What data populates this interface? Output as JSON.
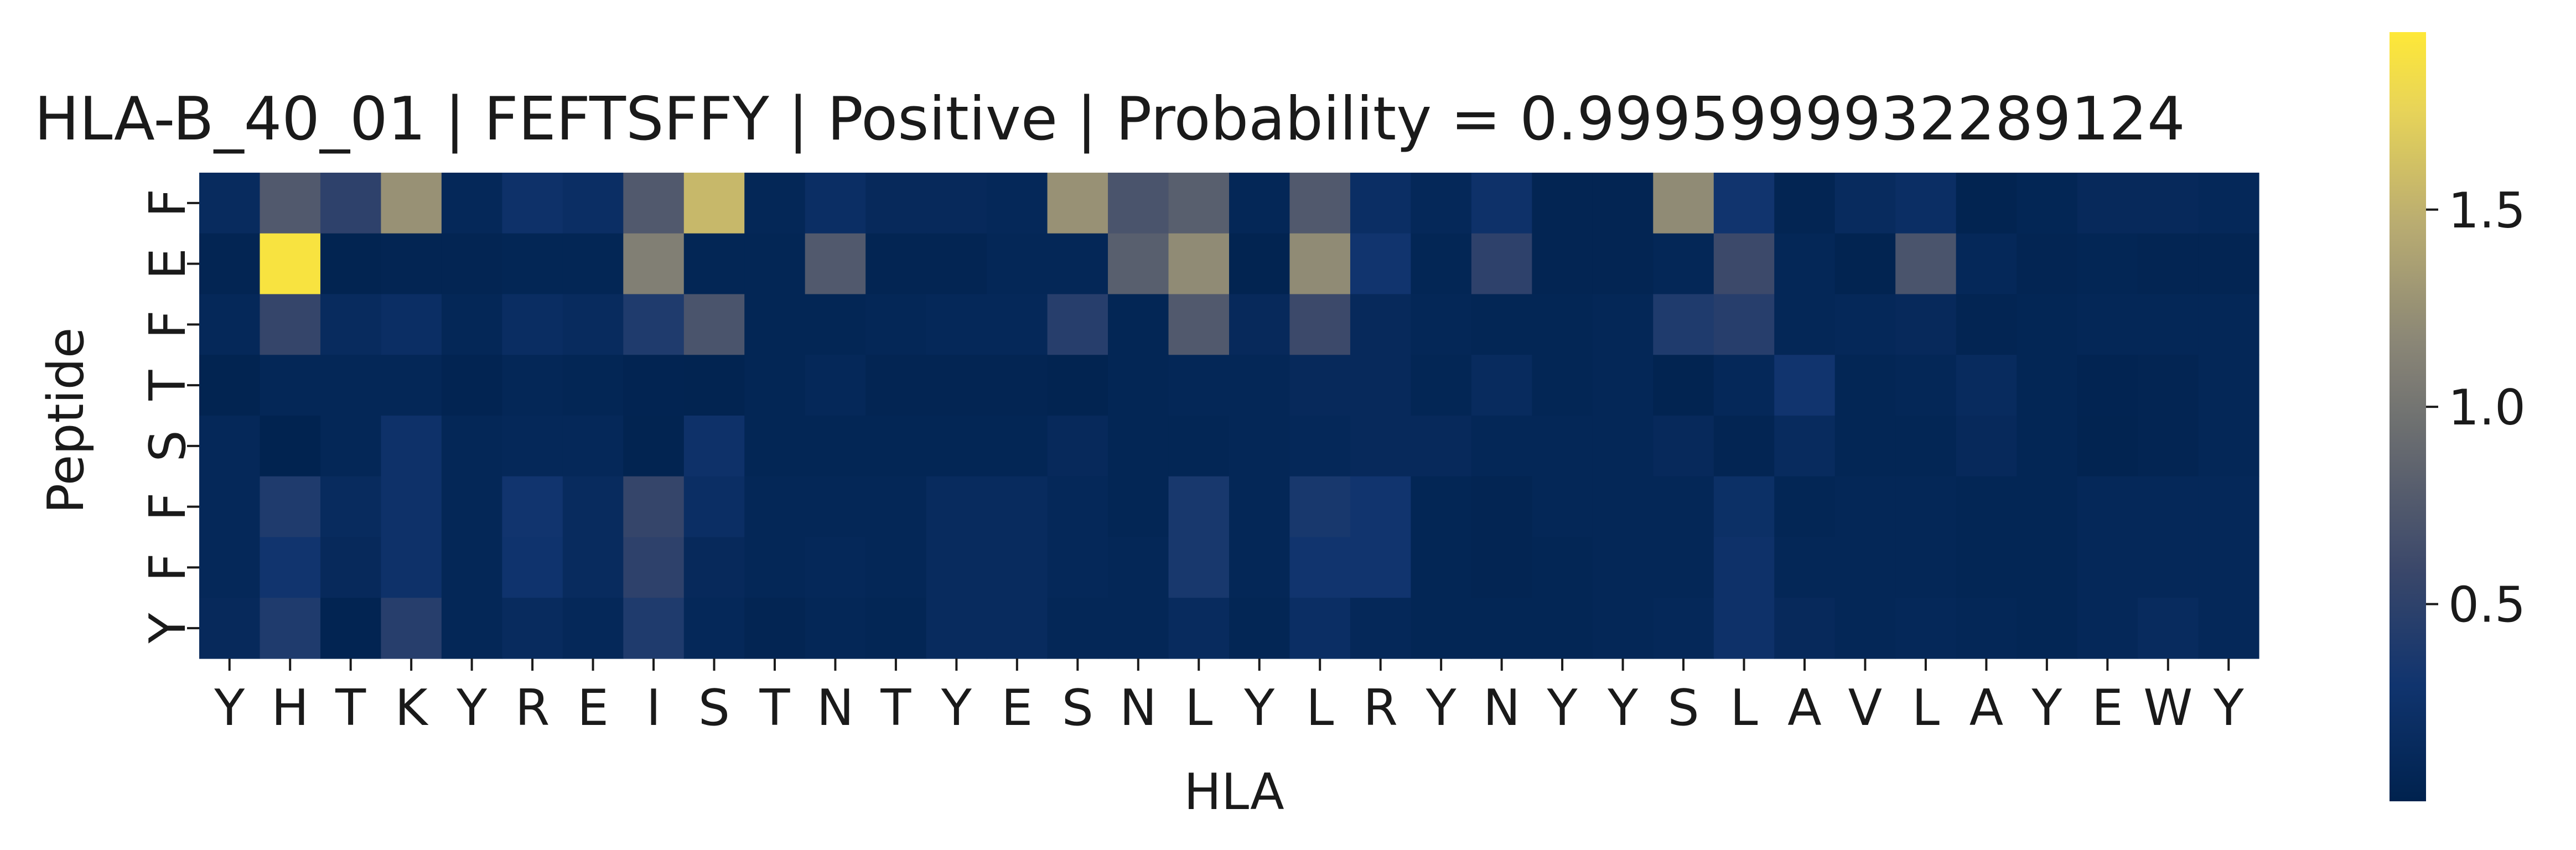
{
  "chart_data": {
    "type": "heatmap",
    "title": "HLA-B_40_01 | FEFTSFFY | Positive | Probability = 0.9995999932289124",
    "xlabel": "HLA",
    "ylabel": "Peptide",
    "x_categories": [
      "Y",
      "H",
      "T",
      "K",
      "Y",
      "R",
      "E",
      "I",
      "S",
      "T",
      "N",
      "T",
      "Y",
      "E",
      "S",
      "N",
      "L",
      "Y",
      "L",
      "R",
      "Y",
      "N",
      "Y",
      "Y",
      "S",
      "L",
      "A",
      "V",
      "L",
      "A",
      "Y",
      "E",
      "W",
      "Y"
    ],
    "y_categories": [
      "F",
      "E",
      "F",
      "T",
      "S",
      "F",
      "F",
      "Y"
    ],
    "values": [
      [
        0.15,
        0.75,
        0.5,
        1.25,
        0.1,
        0.25,
        0.2,
        0.75,
        1.55,
        0.08,
        0.2,
        0.12,
        0.12,
        0.1,
        1.25,
        0.7,
        0.8,
        0.08,
        0.75,
        0.2,
        0.1,
        0.25,
        0.05,
        0.05,
        1.2,
        0.3,
        0.05,
        0.15,
        0.2,
        0.03,
        0.06,
        0.12,
        0.12,
        0.1
      ],
      [
        0.05,
        1.9,
        0.03,
        0.05,
        0.05,
        0.06,
        0.06,
        1.1,
        0.06,
        0.06,
        0.75,
        0.05,
        0.05,
        0.08,
        0.08,
        0.8,
        1.2,
        0.03,
        1.2,
        0.3,
        0.06,
        0.5,
        0.05,
        0.05,
        0.08,
        0.6,
        0.08,
        0.03,
        0.7,
        0.1,
        0.05,
        0.06,
        0.05,
        0.05
      ],
      [
        0.1,
        0.55,
        0.15,
        0.2,
        0.08,
        0.18,
        0.15,
        0.4,
        0.7,
        0.06,
        0.06,
        0.08,
        0.1,
        0.1,
        0.45,
        0.06,
        0.75,
        0.12,
        0.6,
        0.12,
        0.08,
        0.06,
        0.06,
        0.08,
        0.4,
        0.45,
        0.08,
        0.1,
        0.12,
        0.05,
        0.06,
        0.08,
        0.08,
        0.08
      ],
      [
        0.03,
        0.08,
        0.08,
        0.08,
        0.04,
        0.08,
        0.06,
        0.04,
        0.03,
        0.06,
        0.1,
        0.05,
        0.05,
        0.05,
        0.03,
        0.06,
        0.08,
        0.08,
        0.12,
        0.12,
        0.06,
        0.15,
        0.06,
        0.08,
        0.03,
        0.1,
        0.3,
        0.06,
        0.08,
        0.15,
        0.06,
        0.04,
        0.05,
        0.08
      ],
      [
        0.1,
        0.02,
        0.08,
        0.25,
        0.08,
        0.1,
        0.1,
        0.03,
        0.25,
        0.06,
        0.06,
        0.06,
        0.06,
        0.06,
        0.12,
        0.06,
        0.06,
        0.08,
        0.1,
        0.12,
        0.12,
        0.08,
        0.08,
        0.08,
        0.12,
        0.05,
        0.15,
        0.06,
        0.06,
        0.12,
        0.06,
        0.03,
        0.05,
        0.08
      ],
      [
        0.1,
        0.4,
        0.15,
        0.25,
        0.08,
        0.3,
        0.15,
        0.55,
        0.2,
        0.08,
        0.08,
        0.08,
        0.15,
        0.15,
        0.1,
        0.06,
        0.35,
        0.08,
        0.35,
        0.3,
        0.06,
        0.05,
        0.08,
        0.08,
        0.08,
        0.22,
        0.06,
        0.08,
        0.08,
        0.06,
        0.06,
        0.1,
        0.1,
        0.1
      ],
      [
        0.1,
        0.3,
        0.12,
        0.25,
        0.08,
        0.28,
        0.15,
        0.5,
        0.12,
        0.08,
        0.1,
        0.08,
        0.15,
        0.15,
        0.1,
        0.08,
        0.35,
        0.08,
        0.3,
        0.3,
        0.06,
        0.05,
        0.06,
        0.08,
        0.08,
        0.25,
        0.08,
        0.08,
        0.08,
        0.06,
        0.06,
        0.1,
        0.1,
        0.1
      ],
      [
        0.12,
        0.4,
        0.04,
        0.45,
        0.08,
        0.15,
        0.1,
        0.4,
        0.1,
        0.05,
        0.08,
        0.06,
        0.15,
        0.15,
        0.08,
        0.08,
        0.15,
        0.06,
        0.2,
        0.1,
        0.06,
        0.06,
        0.06,
        0.08,
        0.1,
        0.25,
        0.12,
        0.08,
        0.1,
        0.08,
        0.06,
        0.1,
        0.15,
        0.1
      ]
    ],
    "colormap": "cividis",
    "colorbar": {
      "vmin": 0.0,
      "vmax": 1.95,
      "ticks": [
        0.5,
        1.0,
        1.5
      ],
      "tick_labels": [
        "0.5",
        "1.0",
        "1.5"
      ]
    },
    "legend": "colorbar-right",
    "grid": false
  }
}
